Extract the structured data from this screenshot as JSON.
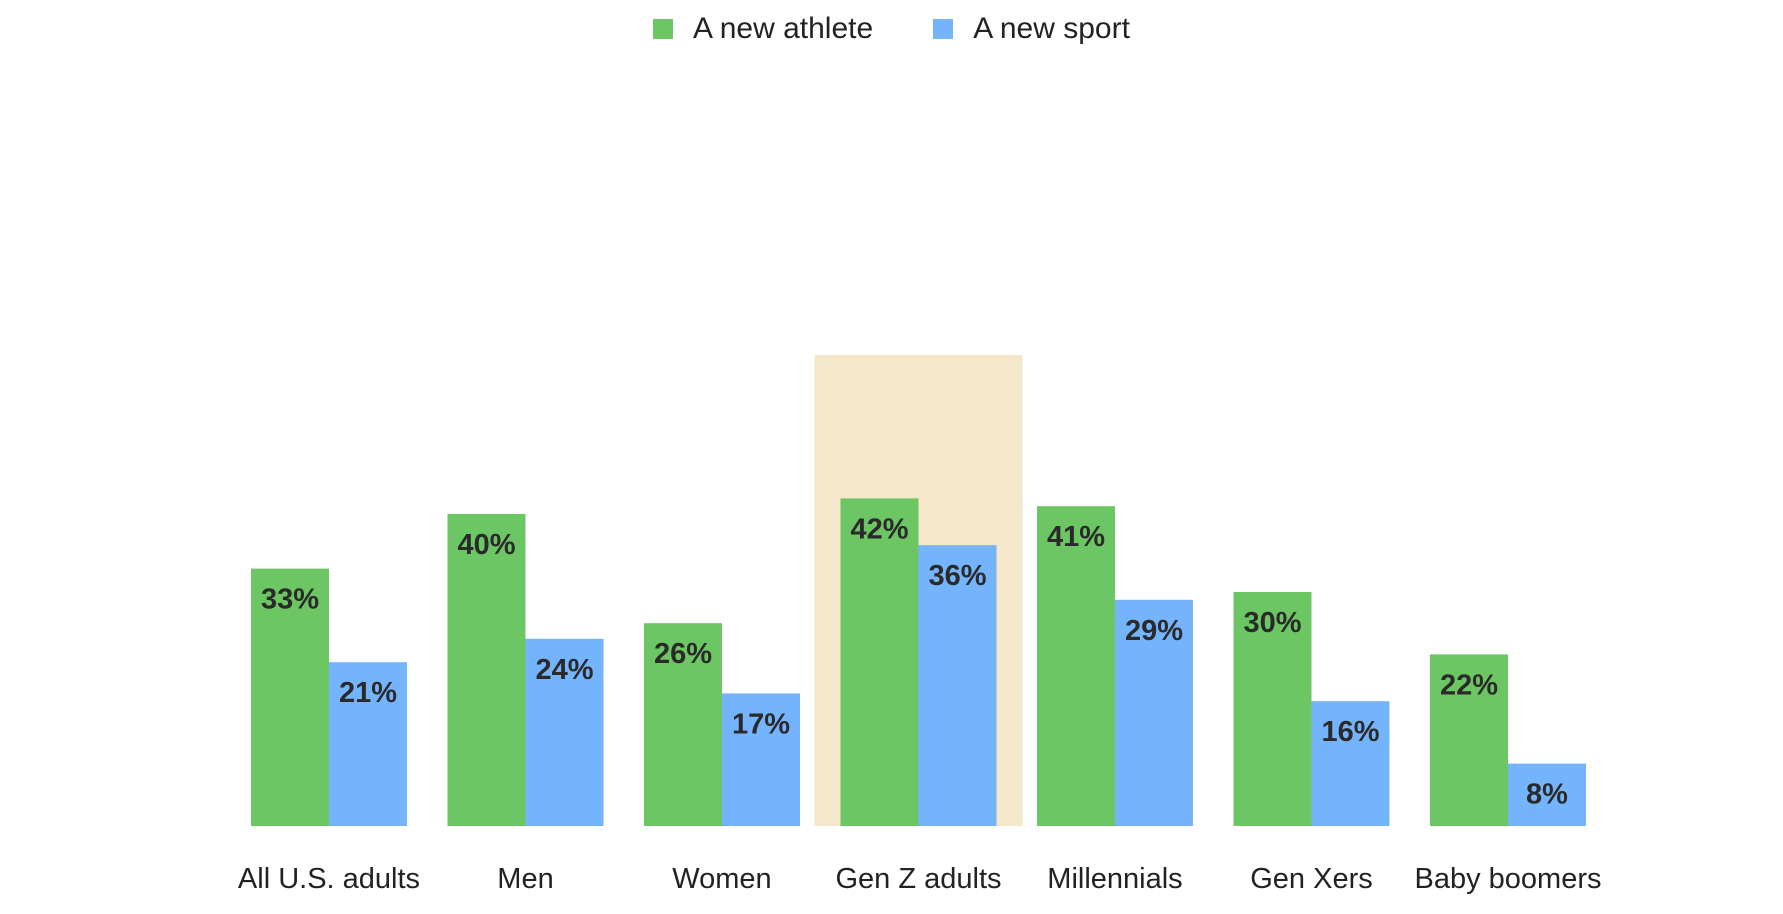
{
  "chart_data": {
    "type": "bar",
    "categories": [
      "All U.S. adults",
      "Men",
      "Women",
      "Gen Z adults",
      "Millennials",
      "Gen Xers",
      "Baby boomers"
    ],
    "series": [
      {
        "name": "A new athlete",
        "values": [
          33,
          40,
          26,
          42,
          41,
          30,
          22
        ],
        "labels": [
          "33%",
          "40%",
          "26%",
          "42%",
          "41%",
          "30%",
          "22%"
        ],
        "color": "#6cc664"
      },
      {
        "name": "A new sport",
        "values": [
          21,
          24,
          17,
          36,
          29,
          16,
          8
        ],
        "labels": [
          "21%",
          "24%",
          "17%",
          "36%",
          "29%",
          "16%",
          "8%"
        ],
        "color": "#74b4fc"
      }
    ],
    "highlight_category": "Gen Z adults",
    "highlight_color": "#f5e7c9",
    "ylim": [
      0,
      45
    ],
    "legend_position": "top-center",
    "title": "",
    "xlabel": "",
    "ylabel": "",
    "grid": false
  }
}
